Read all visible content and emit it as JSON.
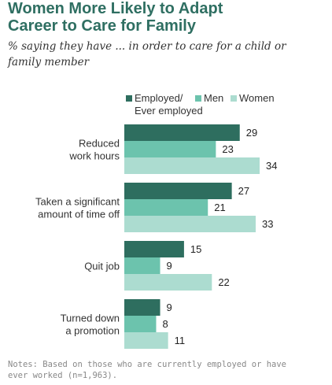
{
  "title_lines": [
    "Women More Likely to Adapt",
    "Career to Care for Family"
  ],
  "subtitle_lines": [
    "% saying they have ... in order to care for a child or",
    "family member"
  ],
  "notes_lines": [
    "Notes: Based on those who are currently employed or have",
    "ever worked (n=1,963)."
  ],
  "colors": {
    "employed": "#2e6e5f",
    "men": "#6cc3ad",
    "women": "#acdcd0",
    "title": "#2f6f62"
  },
  "chart_data": {
    "type": "bar",
    "orientation": "horizontal",
    "title": "Women More Likely to Adapt Career to Care for Family",
    "subtitle": "% saying they have ... in order to care for a child or family member",
    "categories": [
      [
        "Reduced",
        "work hours"
      ],
      [
        "Taken a significant",
        "amount of time off"
      ],
      [
        "Quit job"
      ],
      [
        "Turned down",
        "a promotion"
      ]
    ],
    "series": [
      {
        "name": "Employed/ Ever employed",
        "legend_lines": [
          "Employed/",
          "Ever employed"
        ],
        "values": [
          29,
          27,
          15,
          9
        ]
      },
      {
        "name": "Men",
        "legend_lines": [
          "Men"
        ],
        "values": [
          23,
          21,
          9,
          8
        ]
      },
      {
        "name": "Women",
        "legend_lines": [
          "Women"
        ],
        "values": [
          34,
          33,
          22,
          11
        ]
      }
    ],
    "xlim": [
      0,
      34
    ],
    "grid": false,
    "legend_position": "top",
    "data_labels": true
  }
}
